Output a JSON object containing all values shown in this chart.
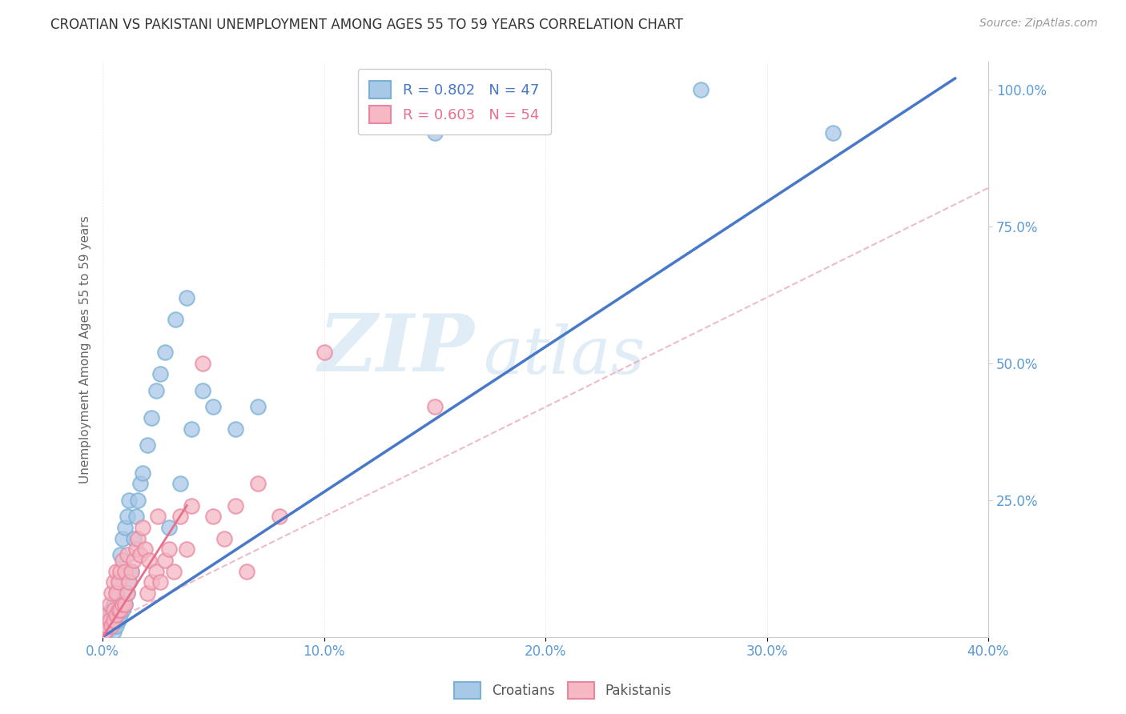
{
  "title": "CROATIAN VS PAKISTANI UNEMPLOYMENT AMONG AGES 55 TO 59 YEARS CORRELATION CHART",
  "source": "Source: ZipAtlas.com",
  "ylabel": "Unemployment Among Ages 55 to 59 years",
  "xlim": [
    0.0,
    0.4
  ],
  "ylim": [
    0.0,
    1.05
  ],
  "xticks": [
    0.0,
    0.1,
    0.2,
    0.3,
    0.4
  ],
  "yticks": [
    0.25,
    0.5,
    0.75,
    1.0
  ],
  "xtick_labels": [
    "0.0%",
    "10.0%",
    "20.0%",
    "30.0%",
    "40.0%"
  ],
  "ytick_labels_right": [
    "25.0%",
    "50.0%",
    "75.0%",
    "100.0%"
  ],
  "croatian_color": "#a8c8e8",
  "croatian_edge_color": "#7ab0d4",
  "pakistani_color": "#f5b8c4",
  "pakistani_edge_color": "#e888a0",
  "croatian_line_color": "#4878c8",
  "pakistani_line_color": "#e8708c",
  "pakistani_dashed_color": "#e8a0b0",
  "croatian_R": 0.802,
  "croatian_N": 47,
  "pakistani_R": 0.603,
  "pakistani_N": 54,
  "legend_croatian": "Croatians",
  "legend_pakistani": "Pakistanis",
  "watermark_zip": "ZIP",
  "watermark_atlas": "atlas",
  "background_color": "#ffffff",
  "grid_color": "#d0d0d0",
  "axis_color": "#5b9bd5",
  "tick_color": "#aaaaaa",
  "croatian_points_x": [
    0.001,
    0.001,
    0.002,
    0.003,
    0.003,
    0.004,
    0.004,
    0.005,
    0.005,
    0.005,
    0.006,
    0.006,
    0.007,
    0.007,
    0.008,
    0.008,
    0.009,
    0.009,
    0.01,
    0.01,
    0.011,
    0.011,
    0.012,
    0.012,
    0.013,
    0.014,
    0.015,
    0.016,
    0.017,
    0.018,
    0.02,
    0.022,
    0.024,
    0.026,
    0.028,
    0.03,
    0.033,
    0.035,
    0.038,
    0.04,
    0.045,
    0.05,
    0.06,
    0.07,
    0.15,
    0.27,
    0.33
  ],
  "croatian_points_y": [
    0.005,
    0.02,
    0.01,
    0.02,
    0.04,
    0.02,
    0.05,
    0.01,
    0.03,
    0.06,
    0.02,
    0.08,
    0.03,
    0.1,
    0.04,
    0.15,
    0.05,
    0.18,
    0.06,
    0.2,
    0.08,
    0.22,
    0.1,
    0.25,
    0.12,
    0.18,
    0.22,
    0.25,
    0.28,
    0.3,
    0.35,
    0.4,
    0.45,
    0.48,
    0.52,
    0.2,
    0.58,
    0.28,
    0.62,
    0.38,
    0.45,
    0.42,
    0.38,
    0.42,
    0.92,
    1.0,
    0.92
  ],
  "pakistani_points_x": [
    0.0005,
    0.001,
    0.001,
    0.002,
    0.002,
    0.003,
    0.003,
    0.004,
    0.004,
    0.005,
    0.005,
    0.005,
    0.006,
    0.006,
    0.006,
    0.007,
    0.007,
    0.008,
    0.008,
    0.009,
    0.009,
    0.01,
    0.01,
    0.011,
    0.011,
    0.012,
    0.013,
    0.014,
    0.015,
    0.016,
    0.017,
    0.018,
    0.019,
    0.02,
    0.021,
    0.022,
    0.024,
    0.025,
    0.026,
    0.028,
    0.03,
    0.032,
    0.035,
    0.038,
    0.04,
    0.045,
    0.05,
    0.055,
    0.06,
    0.065,
    0.07,
    0.08,
    0.1,
    0.15
  ],
  "pakistani_points_y": [
    0.005,
    0.01,
    0.02,
    0.02,
    0.04,
    0.03,
    0.06,
    0.02,
    0.08,
    0.03,
    0.05,
    0.1,
    0.04,
    0.08,
    0.12,
    0.05,
    0.1,
    0.05,
    0.12,
    0.06,
    0.14,
    0.06,
    0.12,
    0.08,
    0.15,
    0.1,
    0.12,
    0.14,
    0.16,
    0.18,
    0.15,
    0.2,
    0.16,
    0.08,
    0.14,
    0.1,
    0.12,
    0.22,
    0.1,
    0.14,
    0.16,
    0.12,
    0.22,
    0.16,
    0.24,
    0.5,
    0.22,
    0.18,
    0.24,
    0.12,
    0.28,
    0.22,
    0.52,
    0.42
  ],
  "blue_line_x": [
    0.0,
    0.385
  ],
  "blue_line_y": [
    0.0,
    1.02
  ],
  "pink_solid_line_x": [
    0.0,
    0.038
  ],
  "pink_solid_line_y": [
    0.0,
    0.24
  ],
  "pink_dashed_line_x": [
    0.0,
    0.4
  ],
  "pink_dashed_line_y": [
    0.02,
    0.82
  ]
}
